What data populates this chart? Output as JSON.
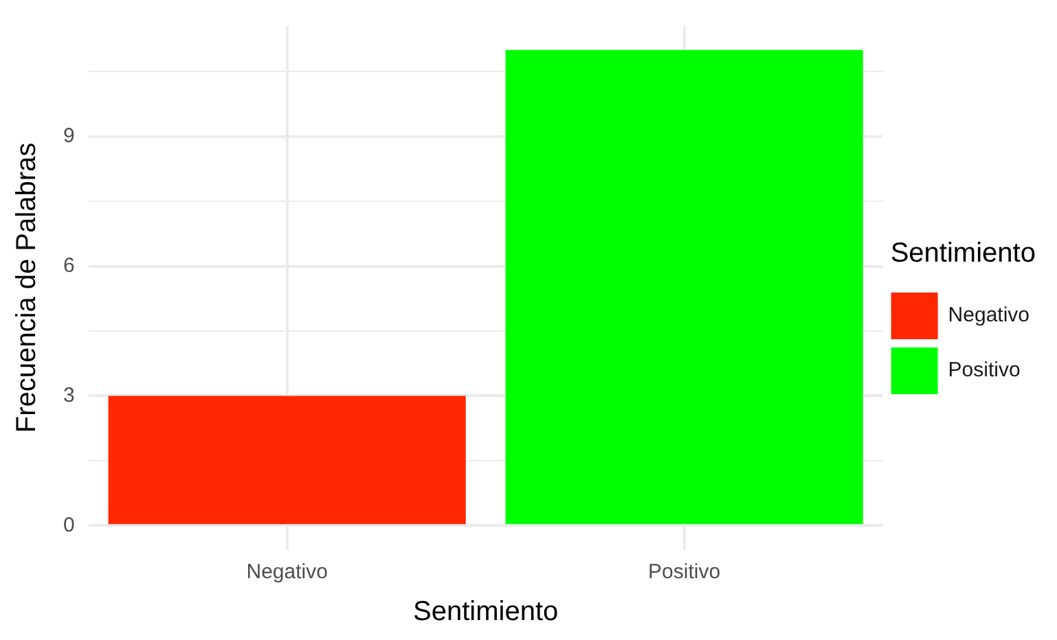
{
  "chart_data": {
    "type": "bar",
    "xlabel": "Sentimiento",
    "ylabel": "Frecuencia de Palabras",
    "legend_title": "Sentimiento",
    "categories": [
      "Negativo",
      "Positivo"
    ],
    "series": [
      {
        "name": "Negativo",
        "color": "#ff2600",
        "values": [
          3,
          null
        ]
      },
      {
        "name": "Positivo",
        "color": "#00ff00",
        "values": [
          null,
          11
        ]
      }
    ],
    "ylim": [
      -0.55,
      11.55
    ],
    "yticks": [
      0,
      {
        "value": 1.5,
        "label": null
      },
      3,
      {
        "value": 4.5,
        "label": null
      },
      6,
      {
        "value": 7.5,
        "label": null
      },
      9,
      {
        "value": 10.5,
        "label": null
      }
    ],
    "grid": true,
    "legend": "right"
  }
}
